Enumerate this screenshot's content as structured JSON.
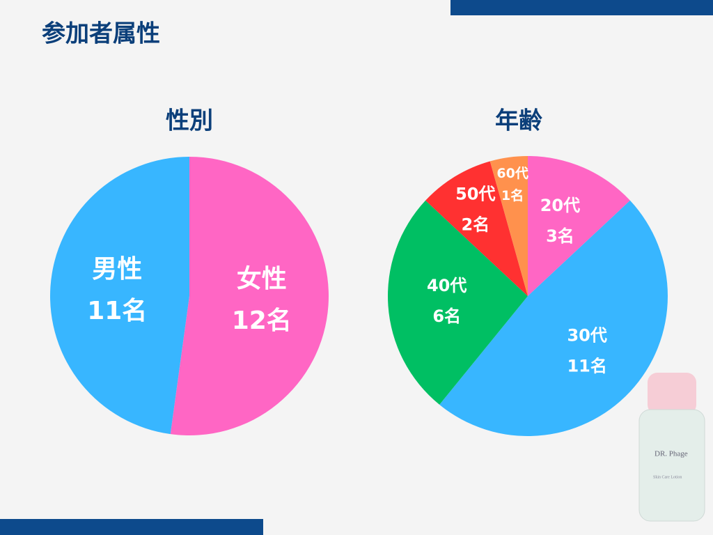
{
  "title": "参加者属性",
  "chart_data": [
    {
      "type": "pie",
      "title": "性別",
      "categories": [
        "女性",
        "男性"
      ],
      "values": [
        12,
        11
      ],
      "value_labels": [
        "12名",
        "11名"
      ],
      "colors": [
        "#ff66c4",
        "#38b6ff"
      ]
    },
    {
      "type": "pie",
      "title": "年齢",
      "categories": [
        "20代",
        "30代",
        "40代",
        "50代",
        "60代"
      ],
      "values": [
        3,
        11,
        6,
        2,
        1
      ],
      "value_labels": [
        "3名",
        "11名",
        "6名",
        "2名",
        "1名"
      ],
      "colors": [
        "#ff66c4",
        "#38b6ff",
        "#00bf63",
        "#ff3131",
        "#ff914d"
      ]
    }
  ],
  "product": {
    "brand": "DR. Phage",
    "label": "Skin Care Lotion"
  }
}
